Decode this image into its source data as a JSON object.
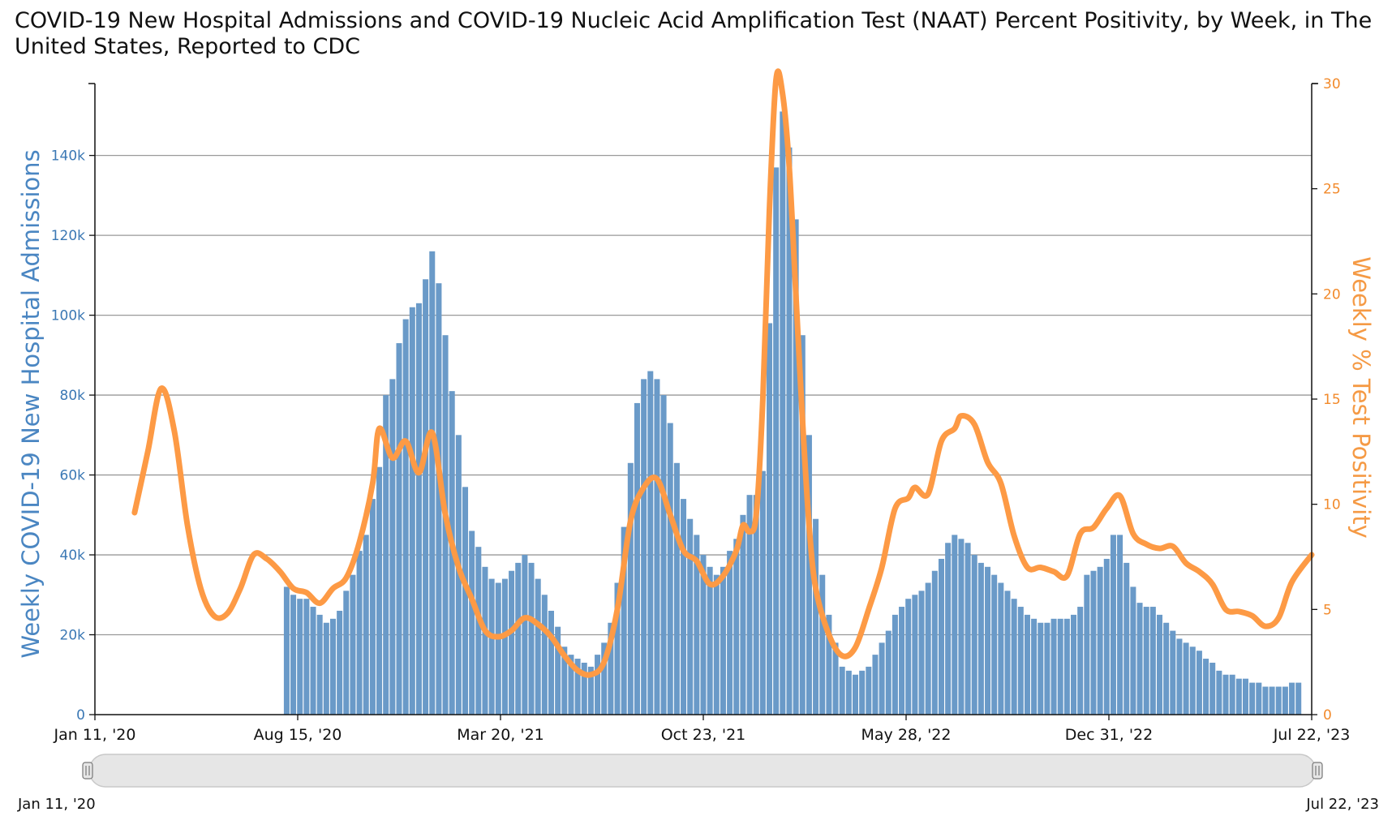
{
  "title": "COVID-19 New Hospital Admissions and COVID-19 Nucleic Acid Amplification Test (NAAT) Percent Positivity, by Week, in The United States, Reported to CDC",
  "colors": {
    "bars": "#6a9ac8",
    "line": "#fd9a45",
    "left_axis": "#3b78b4",
    "right_axis": "#f28a2b",
    "grid": "#999999"
  },
  "navigator": {
    "start_label": "Jan 11, '20",
    "end_label": "Jul 22, '23"
  },
  "chart_data": {
    "type": "bar+line",
    "x_start_date": "2020-01-11",
    "x_end_date": "2023-07-22",
    "x_ticks": [
      "Jan 11, '20",
      "Aug 15, '20",
      "Mar 20, '21",
      "Oct 23, '21",
      "May 28, '22",
      "Dec 31, '22",
      "Jul 22, '23"
    ],
    "y_left": {
      "label": "Weekly COVID-19 New Hospital Admissions",
      "min": 0,
      "max": 158000,
      "ticks": [
        0,
        20000,
        40000,
        60000,
        80000,
        100000,
        120000,
        140000
      ],
      "tick_labels": [
        "0",
        "20k",
        "40k",
        "60k",
        "80k",
        "100k",
        "120k",
        "140k"
      ]
    },
    "y_right": {
      "label": "Weekly % Test Positivity",
      "min": 0,
      "max": 30,
      "ticks": [
        0,
        5,
        10,
        15,
        20,
        25,
        30
      ],
      "tick_labels": [
        "0",
        "5",
        "10",
        "15",
        "20",
        "25",
        "30"
      ]
    },
    "grid": true,
    "series": [
      {
        "name": "Weekly COVID-19 New Hospital Admissions",
        "type": "bar",
        "start_date": "2020-08-01",
        "values": [
          32000,
          30000,
          29000,
          29000,
          27000,
          25000,
          23000,
          24000,
          26000,
          31000,
          35000,
          41000,
          45000,
          54000,
          62000,
          80000,
          84000,
          93000,
          99000,
          102000,
          103000,
          109000,
          116000,
          108000,
          95000,
          81000,
          70000,
          57000,
          46000,
          42000,
          37000,
          34000,
          33000,
          34000,
          36000,
          38000,
          40000,
          38000,
          34000,
          30000,
          26000,
          22000,
          17000,
          15000,
          14000,
          13000,
          12000,
          15000,
          18000,
          23000,
          33000,
          47000,
          63000,
          78000,
          84000,
          86000,
          84000,
          80000,
          73000,
          63000,
          54000,
          49000,
          45000,
          40000,
          37000,
          35000,
          37000,
          41000,
          44000,
          50000,
          55000,
          55000,
          61000,
          98000,
          137000,
          151000,
          142000,
          124000,
          95000,
          70000,
          49000,
          35000,
          25000,
          18000,
          12000,
          11000,
          10000,
          11000,
          12000,
          15000,
          18000,
          21000,
          25000,
          27000,
          29000,
          30000,
          31000,
          33000,
          36000,
          39000,
          43000,
          45000,
          44000,
          43000,
          40000,
          38000,
          37000,
          35000,
          33000,
          31000,
          29000,
          27000,
          25000,
          24000,
          23000,
          23000,
          24000,
          24000,
          24000,
          25000,
          27000,
          35000,
          36000,
          37000,
          39000,
          45000,
          45000,
          38000,
          32000,
          28000,
          27000,
          27000,
          25000,
          23000,
          21000,
          19000,
          18000,
          17000,
          16000,
          14000,
          13000,
          11000,
          10000,
          10000,
          9000,
          9000,
          8000,
          8000,
          7000,
          7000,
          7000,
          7000,
          8000,
          8000
        ]
      },
      {
        "name": "Weekly % Test Positivity",
        "type": "line",
        "points": [
          [
            "2020-02-22",
            9.6
          ],
          [
            "2020-03-07",
            12.5
          ],
          [
            "2020-03-21",
            15.5
          ],
          [
            "2020-04-04",
            13.5
          ],
          [
            "2020-04-18",
            9.0
          ],
          [
            "2020-05-02",
            6.0
          ],
          [
            "2020-05-16",
            4.7
          ],
          [
            "2020-05-30",
            4.8
          ],
          [
            "2020-06-13",
            6.0
          ],
          [
            "2020-06-27",
            7.6
          ],
          [
            "2020-07-11",
            7.4
          ],
          [
            "2020-07-25",
            6.8
          ],
          [
            "2020-08-08",
            6.0
          ],
          [
            "2020-08-22",
            5.8
          ],
          [
            "2020-09-05",
            5.3
          ],
          [
            "2020-09-19",
            6.0
          ],
          [
            "2020-10-03",
            6.5
          ],
          [
            "2020-10-17",
            8.2
          ],
          [
            "2020-10-31",
            11.0
          ],
          [
            "2020-11-07",
            13.6
          ],
          [
            "2020-11-21",
            12.2
          ],
          [
            "2020-12-05",
            13.0
          ],
          [
            "2020-12-19",
            11.5
          ],
          [
            "2021-01-02",
            13.4
          ],
          [
            "2021-01-16",
            9.5
          ],
          [
            "2021-01-30",
            7.0
          ],
          [
            "2021-02-13",
            5.5
          ],
          [
            "2021-02-27",
            4.0
          ],
          [
            "2021-03-13",
            3.7
          ],
          [
            "2021-03-27",
            4.0
          ],
          [
            "2021-04-10",
            4.6
          ],
          [
            "2021-04-24",
            4.3
          ],
          [
            "2021-05-08",
            3.7
          ],
          [
            "2021-05-22",
            2.8
          ],
          [
            "2021-06-05",
            2.1
          ],
          [
            "2021-06-19",
            1.9
          ],
          [
            "2021-07-03",
            2.5
          ],
          [
            "2021-07-17",
            5.0
          ],
          [
            "2021-07-31",
            9.2
          ],
          [
            "2021-08-14",
            10.8
          ],
          [
            "2021-08-28",
            11.2
          ],
          [
            "2021-09-11",
            9.5
          ],
          [
            "2021-09-25",
            7.8
          ],
          [
            "2021-10-09",
            7.3
          ],
          [
            "2021-10-23",
            6.2
          ],
          [
            "2021-11-06",
            6.6
          ],
          [
            "2021-11-20",
            7.8
          ],
          [
            "2021-11-27",
            9.0
          ],
          [
            "2021-12-04",
            8.7
          ],
          [
            "2021-12-11",
            9.5
          ],
          [
            "2021-12-18",
            15.0
          ],
          [
            "2021-12-25",
            24.0
          ],
          [
            "2022-01-01",
            30.2
          ],
          [
            "2022-01-08",
            29.5
          ],
          [
            "2022-01-15",
            26.0
          ],
          [
            "2022-01-22",
            20.0
          ],
          [
            "2022-01-29",
            14.0
          ],
          [
            "2022-02-05",
            9.0
          ],
          [
            "2022-02-12",
            6.0
          ],
          [
            "2022-02-26",
            3.8
          ],
          [
            "2022-03-12",
            2.8
          ],
          [
            "2022-03-26",
            3.2
          ],
          [
            "2022-04-09",
            5.0
          ],
          [
            "2022-04-23",
            7.0
          ],
          [
            "2022-05-07",
            9.8
          ],
          [
            "2022-05-21",
            10.3
          ],
          [
            "2022-05-28",
            10.8
          ],
          [
            "2022-06-11",
            10.5
          ],
          [
            "2022-06-25",
            13.0
          ],
          [
            "2022-07-09",
            13.6
          ],
          [
            "2022-07-16",
            14.2
          ],
          [
            "2022-07-30",
            13.8
          ],
          [
            "2022-08-13",
            12.0
          ],
          [
            "2022-08-27",
            11.0
          ],
          [
            "2022-09-10",
            8.5
          ],
          [
            "2022-09-24",
            7.0
          ],
          [
            "2022-10-08",
            7.0
          ],
          [
            "2022-10-22",
            6.8
          ],
          [
            "2022-11-05",
            6.6
          ],
          [
            "2022-11-19",
            8.6
          ],
          [
            "2022-12-03",
            8.9
          ],
          [
            "2022-12-17",
            9.8
          ],
          [
            "2022-12-31",
            10.4
          ],
          [
            "2023-01-14",
            8.6
          ],
          [
            "2023-01-28",
            8.1
          ],
          [
            "2023-02-11",
            7.9
          ],
          [
            "2023-02-25",
            8.0
          ],
          [
            "2023-03-11",
            7.2
          ],
          [
            "2023-03-25",
            6.8
          ],
          [
            "2023-04-08",
            6.2
          ],
          [
            "2023-04-22",
            5.0
          ],
          [
            "2023-05-06",
            4.9
          ],
          [
            "2023-05-20",
            4.7
          ],
          [
            "2023-06-03",
            4.2
          ],
          [
            "2023-06-17",
            4.6
          ],
          [
            "2023-07-01",
            6.3
          ],
          [
            "2023-07-22",
            7.6
          ]
        ]
      }
    ]
  }
}
